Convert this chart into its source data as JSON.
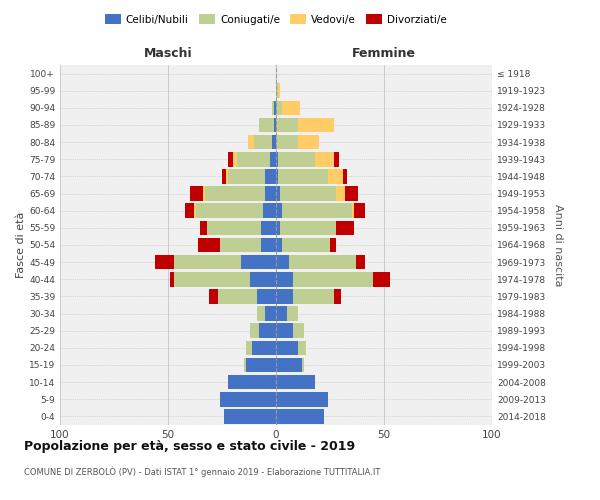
{
  "age_groups": [
    "0-4",
    "5-9",
    "10-14",
    "15-19",
    "20-24",
    "25-29",
    "30-34",
    "35-39",
    "40-44",
    "45-49",
    "50-54",
    "55-59",
    "60-64",
    "65-69",
    "70-74",
    "75-79",
    "80-84",
    "85-89",
    "90-94",
    "95-99",
    "100+"
  ],
  "birth_years": [
    "2014-2018",
    "2009-2013",
    "2004-2008",
    "1999-2003",
    "1994-1998",
    "1989-1993",
    "1984-1988",
    "1979-1983",
    "1974-1978",
    "1969-1973",
    "1964-1968",
    "1959-1963",
    "1954-1958",
    "1949-1953",
    "1944-1948",
    "1939-1943",
    "1934-1938",
    "1929-1933",
    "1924-1928",
    "1919-1923",
    "≤ 1918"
  ],
  "maschi": {
    "celibi": [
      24,
      26,
      22,
      14,
      11,
      8,
      5,
      9,
      12,
      16,
      7,
      7,
      6,
      5,
      5,
      3,
      2,
      1,
      1,
      0,
      0
    ],
    "coniugati": [
      0,
      0,
      0,
      1,
      3,
      4,
      4,
      18,
      35,
      31,
      19,
      25,
      31,
      28,
      17,
      15,
      8,
      7,
      1,
      0,
      0
    ],
    "vedovi": [
      0,
      0,
      0,
      0,
      0,
      0,
      0,
      0,
      0,
      0,
      0,
      0,
      1,
      1,
      1,
      2,
      3,
      0,
      0,
      0,
      0
    ],
    "divorziati": [
      0,
      0,
      0,
      0,
      0,
      0,
      0,
      4,
      2,
      9,
      10,
      3,
      4,
      6,
      2,
      2,
      0,
      0,
      0,
      0,
      0
    ]
  },
  "femmine": {
    "nubili": [
      22,
      24,
      18,
      12,
      10,
      8,
      5,
      8,
      8,
      6,
      3,
      2,
      3,
      2,
      1,
      1,
      0,
      0,
      0,
      0,
      0
    ],
    "coniugate": [
      0,
      0,
      0,
      1,
      4,
      5,
      5,
      19,
      37,
      31,
      22,
      26,
      32,
      26,
      23,
      17,
      10,
      10,
      3,
      1,
      0
    ],
    "vedove": [
      0,
      0,
      0,
      0,
      0,
      0,
      0,
      0,
      0,
      0,
      0,
      0,
      1,
      4,
      7,
      9,
      10,
      17,
      8,
      1,
      0
    ],
    "divorziate": [
      0,
      0,
      0,
      0,
      0,
      0,
      0,
      3,
      8,
      4,
      3,
      8,
      5,
      6,
      2,
      2,
      0,
      0,
      0,
      0,
      0
    ]
  },
  "color_celibi": "#4472C4",
  "color_coniugati": "#BFCE93",
  "color_vedovi": "#FFCC66",
  "color_divorziati": "#C00000",
  "title": "Popolazione per età, sesso e stato civile - 2019",
  "subtitle": "COMUNE DI ZERBOLÒ (PV) - Dati ISTAT 1° gennaio 2019 - Elaborazione TUTTITALIA.IT",
  "xlabel_maschi": "Maschi",
  "xlabel_femmine": "Femmine",
  "ylabel_left": "Fasce di età",
  "ylabel_right": "Anni di nascita",
  "xlim": 100,
  "bg_color": "#ffffff"
}
